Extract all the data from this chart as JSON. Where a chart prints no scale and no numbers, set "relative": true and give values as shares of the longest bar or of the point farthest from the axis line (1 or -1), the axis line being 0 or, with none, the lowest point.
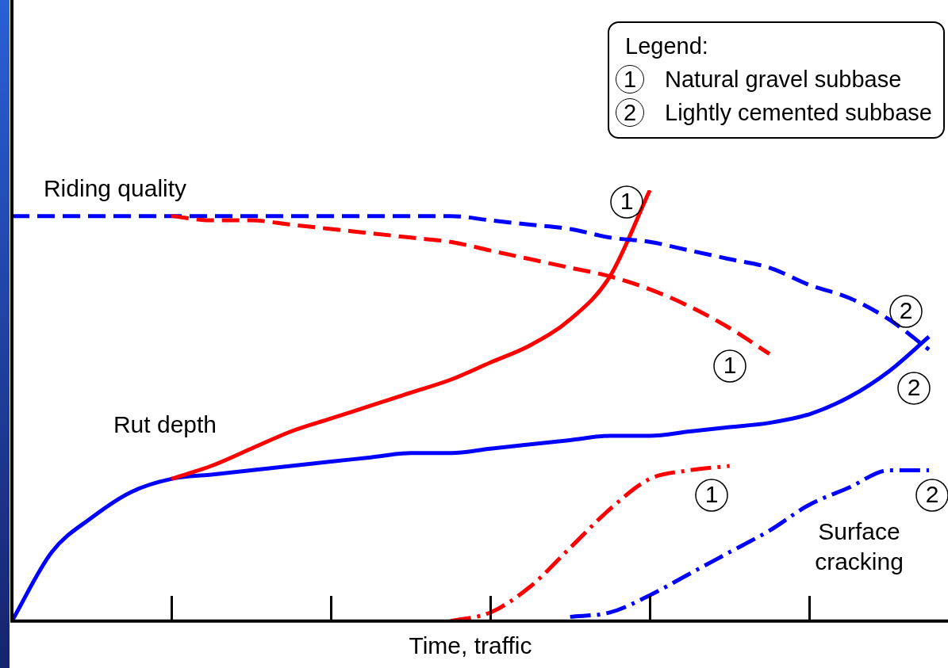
{
  "chart_data": {
    "type": "line",
    "relative": true,
    "xlabel": "Time, traffic",
    "legend_title": "Legend:",
    "categories": [
      null,
      null,
      null,
      null,
      null,
      null,
      null,
      null,
      null,
      null,
      null,
      null,
      null,
      null,
      null,
      null,
      null,
      null,
      null,
      null,
      null,
      null,
      null,
      null
    ],
    "annotations": [
      "Riding quality",
      "Rut depth",
      "Surface cracking",
      "1",
      "1",
      "2",
      "2",
      "1",
      "2",
      "Natural gravel subbase",
      "Lightly cemented subbase"
    ],
    "series": [
      {
        "color": "#ff0000",
        "line_style": "dashed",
        "values": [
          null,
          null,
          null,
          null,
          0.94,
          0.93,
          0.93,
          0.92,
          0.91,
          0.9,
          0.89,
          0.88,
          0.86,
          0.84,
          0.82,
          0.8,
          0.77,
          0.73,
          0.68,
          0.62,
          null,
          null,
          null,
          null
        ]
      },
      {
        "color": "#0000ff",
        "line_style": "dashed",
        "values": [
          0.94,
          0.94,
          0.94,
          0.94,
          0.94,
          0.94,
          0.94,
          0.94,
          0.94,
          0.94,
          0.94,
          0.94,
          0.93,
          0.92,
          0.91,
          0.89,
          0.88,
          0.86,
          0.84,
          0.82,
          0.78,
          0.75,
          0.7,
          0.63
        ]
      },
      {
        "color": "#ff0000",
        "line_style": "solid",
        "values": [
          null,
          null,
          null,
          null,
          0.33,
          0.36,
          0.4,
          0.44,
          0.47,
          0.5,
          0.53,
          0.56,
          0.6,
          0.64,
          0.7,
          0.8,
          1.0,
          null,
          null,
          null,
          null,
          null,
          null,
          null
        ]
      },
      {
        "color": "#0000ff",
        "line_style": "solid",
        "values": [
          0,
          0.16,
          0.24,
          0.3,
          0.33,
          0.34,
          0.35,
          0.36,
          0.37,
          0.38,
          0.39,
          0.39,
          0.4,
          0.41,
          0.42,
          0.43,
          0.43,
          0.44,
          0.45,
          0.46,
          0.48,
          0.52,
          0.58,
          0.66
        ]
      },
      {
        "color": "#ff0000",
        "line_style": "dotted",
        "values": [
          null,
          null,
          null,
          null,
          null,
          null,
          null,
          null,
          null,
          null,
          null,
          0,
          0.02,
          0.08,
          0.17,
          0.26,
          0.33,
          0.35,
          0.36,
          null,
          null,
          null,
          null,
          null
        ]
      },
      {
        "color": "#0000ff",
        "line_style": "dotted",
        "values": [
          null,
          null,
          null,
          null,
          null,
          null,
          null,
          null,
          null,
          null,
          null,
          null,
          null,
          null,
          0.01,
          0.02,
          0.06,
          0.11,
          0.16,
          0.21,
          0.27,
          0.31,
          0.35,
          0.35
        ]
      }
    ]
  }
}
